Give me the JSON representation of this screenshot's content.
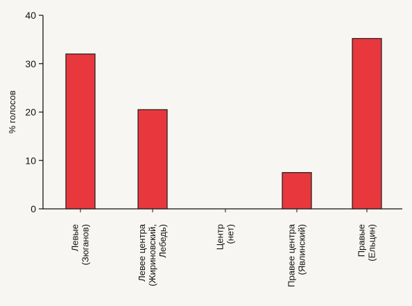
{
  "chart_data": {
    "type": "bar",
    "title": "",
    "xlabel": "",
    "ylabel": "% голосов",
    "ylim": [
      0,
      40
    ],
    "yticks": [
      0,
      10,
      20,
      30,
      40
    ],
    "grid": false,
    "bar_color": "#e8383d",
    "categories": [
      [
        "Левые",
        "(Зюганов)"
      ],
      [
        "Левее центра",
        "(Жириновский,",
        "Лебедь)"
      ],
      [
        "Центр",
        "(нет)"
      ],
      [
        "Правее центра",
        "(Явлинский)"
      ],
      [
        "Правые",
        "(Ельцин)"
      ]
    ],
    "values": [
      32,
      20.5,
      0,
      7.5,
      35.2
    ]
  }
}
